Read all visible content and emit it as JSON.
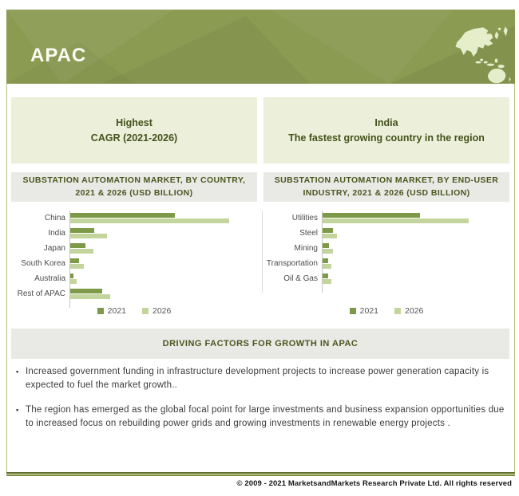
{
  "header": {
    "title": "APAC"
  },
  "highlights": {
    "left": {
      "line1": "Highest",
      "line2": "CAGR (2021-2026)"
    },
    "right": {
      "line1": "India",
      "line2": "The fastest growing country in the region"
    }
  },
  "driving": {
    "title": "DRIVING FACTORS FOR GROWTH IN APAC",
    "bullets": [
      "Increased government funding in infrastructure  development projects to increase power generation capacity is expected to fuel the market growth..",
      "The region has emerged as the global focal point for large investments and business expansion opportunities due to increased focus on rebuilding power grids and growing investments in renewable energy projects ."
    ]
  },
  "footer": {
    "copyright": "© 2009 - 2021 MarketsandMarkets Research Private Ltd. All rights reserved"
  },
  "colors": {
    "header_green": "#8b9b52",
    "map_light_green": "#e6edcb",
    "highlight_box": "#ecf0da",
    "band_gray": "#e9e9e5",
    "dark_olive_text": "#4a571f",
    "bar_2021": "#7d9a49",
    "bar_2026": "#c3d59c",
    "frame_border": "#b3bf7e"
  },
  "chart_data": [
    {
      "type": "bar",
      "orientation": "horizontal",
      "title": "SUBSTATION AUTOMATION MARKET, BY COUNTRY, 2021 & 2026 (USD BILLION)",
      "categories": [
        "China",
        "India",
        "Japan",
        "South Korea",
        "Australia",
        "Rest of APAC"
      ],
      "series": [
        {
          "name": "2021",
          "color": "#7d9a49",
          "values": [
            66,
            15,
            9.5,
            5.5,
            2,
            20
          ]
        },
        {
          "name": "2026",
          "color": "#c3d59c",
          "values": [
            100,
            23,
            14.5,
            8.5,
            4,
            25
          ]
        }
      ],
      "value_scale": "relative bar length, % of longest bar (no numeric axis labels shown in chart)",
      "axis_tick_labels_shown": false,
      "grid": false,
      "legend_position": "bottom",
      "legend_entries": [
        "2021",
        "2026"
      ]
    },
    {
      "type": "bar",
      "orientation": "horizontal",
      "title": "SUBSTATION AUTOMATION MARKET, BY END-USER INDUSTRY, 2021 & 2026 (USD BILLION)",
      "categories": [
        "Utilities",
        "Steel",
        "Mining",
        "Transportation",
        "Oil & Gas"
      ],
      "series": [
        {
          "name": "2021",
          "color": "#7d9a49",
          "values": [
            67,
            7,
            4.5,
            4,
            4
          ]
        },
        {
          "name": "2026",
          "color": "#c3d59c",
          "values": [
            100,
            10,
            7,
            6,
            6
          ]
        }
      ],
      "value_scale": "relative bar length, % of longest bar (no numeric axis labels shown in chart)",
      "axis_tick_labels_shown": false,
      "grid": false,
      "legend_position": "bottom",
      "legend_entries": [
        "2021",
        "2026"
      ]
    }
  ]
}
